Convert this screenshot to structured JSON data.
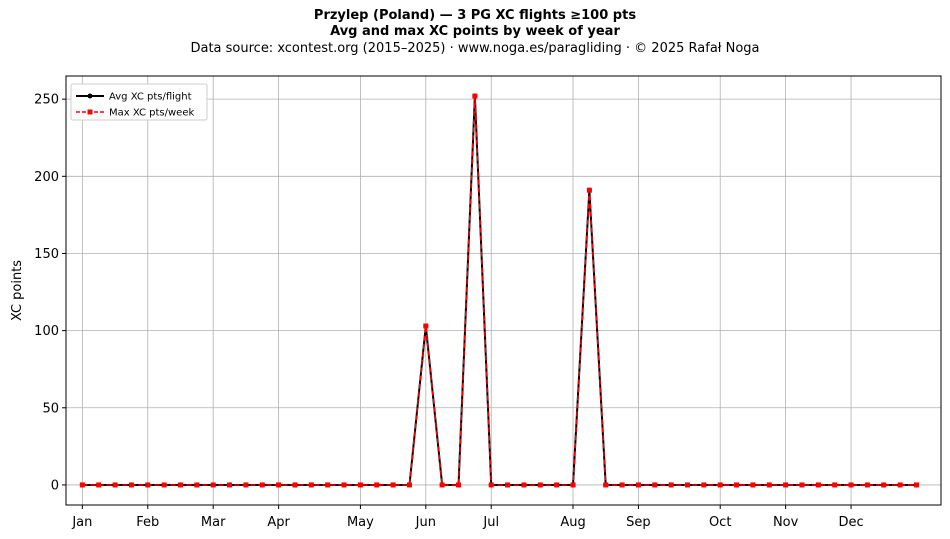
{
  "title": {
    "line1": "Przylep (Poland)  —  3 PG XC flights ≥100 pts",
    "line2": "Avg and max XC points by week of year",
    "line3": "Data source: xcontest.org (2015–2025)  ·  www.noga.es/paragliding  ·  © 2025 Rafał Noga"
  },
  "chart_data": {
    "type": "line",
    "ylabel": "XC points",
    "xlabel": "",
    "ylim": [
      -13,
      265
    ],
    "xlim": [
      -2,
      105
    ],
    "yticks": [
      0,
      50,
      100,
      150,
      200,
      250
    ],
    "xticks": [
      {
        "label": "Jan",
        "day": 0
      },
      {
        "label": "Feb",
        "day": 8
      },
      {
        "label": "Mar",
        "day": 16
      },
      {
        "label": "Apr",
        "day": 24
      },
      {
        "label": "May",
        "day": 34
      },
      {
        "label": "Jun",
        "day": 42
      },
      {
        "label": "Jul",
        "day": 50
      },
      {
        "label": "Aug",
        "day": 60
      },
      {
        "label": "Sep",
        "day": 68
      },
      {
        "label": "Oct",
        "day": 78
      },
      {
        "label": "Nov",
        "day": 86
      },
      {
        "label": "Dec",
        "day": 94
      }
    ],
    "grid": true,
    "legend_position": "top-left",
    "x": [
      0,
      2,
      4,
      6,
      8,
      10,
      12,
      14,
      16,
      18,
      20,
      22,
      24,
      26,
      28,
      30,
      32,
      34,
      36,
      38,
      40,
      42,
      44,
      46,
      48,
      50,
      52,
      54,
      56,
      58,
      60,
      62,
      64,
      66,
      68,
      70,
      72,
      74,
      76,
      78,
      80,
      82,
      84,
      86,
      88,
      90,
      92,
      94,
      96,
      98,
      100,
      102
    ],
    "series": [
      {
        "name": "Avg XC pts/flight",
        "color": "#000000",
        "style": "solid-circle",
        "values": [
          0,
          0,
          0,
          0,
          0,
          0,
          0,
          0,
          0,
          0,
          0,
          0,
          0,
          0,
          0,
          0,
          0,
          0,
          0,
          0,
          0,
          103,
          0,
          0,
          252,
          0,
          0,
          0,
          0,
          0,
          0,
          191,
          0,
          0,
          0,
          0,
          0,
          0,
          0,
          0,
          0,
          0,
          0,
          0,
          0,
          0,
          0,
          0,
          0,
          0,
          0,
          0
        ]
      },
      {
        "name": "Max XC pts/week",
        "color": "#ff0000",
        "style": "dashed-square",
        "values": [
          0,
          0,
          0,
          0,
          0,
          0,
          0,
          0,
          0,
          0,
          0,
          0,
          0,
          0,
          0,
          0,
          0,
          0,
          0,
          0,
          0,
          103,
          0,
          0,
          252,
          0,
          0,
          0,
          0,
          0,
          0,
          191,
          0,
          0,
          0,
          0,
          0,
          0,
          0,
          0,
          0,
          0,
          0,
          0,
          0,
          0,
          0,
          0,
          0,
          0,
          0,
          0
        ]
      }
    ]
  }
}
